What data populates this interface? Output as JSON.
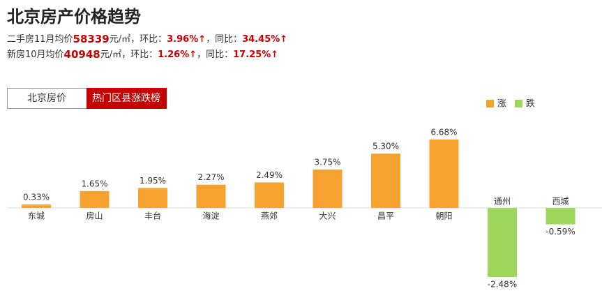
{
  "header": {
    "title": "北京房产价格趋势",
    "lines": [
      {
        "label": "二手房11月均价",
        "price": 58339,
        "unit": "元/㎡，环比：",
        "mom": "3.96%↑",
        "sep": "，同比：",
        "yoy": "34.45%↑"
      },
      {
        "label": "新房10月均价",
        "price": 40948,
        "unit": "元/㎡，环比：",
        "mom": "1.26%↑",
        "sep": "，同比：",
        "yoy": "17.25%↑"
      }
    ]
  },
  "tabs": [
    {
      "label": "北京房价",
      "active": false
    },
    {
      "label": "热门区县涨跌榜",
      "active": true
    }
  ],
  "chart_data": {
    "type": "bar",
    "categories": [
      "东城",
      "房山",
      "丰台",
      "海淀",
      "燕郊",
      "大兴",
      "昌平",
      "朝阳",
      "通州",
      "西城"
    ],
    "values": [
      0.33,
      1.65,
      1.95,
      2.27,
      2.49,
      3.75,
      5.3,
      6.68,
      -2.48,
      -0.59
    ],
    "value_labels": [
      "0.33%",
      "1.65%",
      "1.95%",
      "2.27%",
      "2.49%",
      "3.75%",
      "5.30%",
      "6.68%",
      "-2.48%",
      "-0.59%"
    ],
    "legend": [
      {
        "name": "涨",
        "color": "#f5a230"
      },
      {
        "name": "跌",
        "color": "#9ed65e"
      }
    ]
  }
}
